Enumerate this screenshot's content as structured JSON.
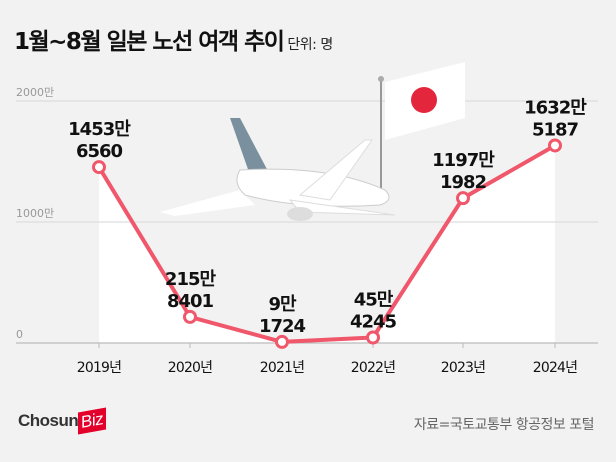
{
  "chart_data": {
    "type": "line",
    "title": "1월~8월 일본 노선 여객 추이",
    "unit_label": "단위: 명",
    "categories": [
      "2019년",
      "2020년",
      "2021년",
      "2022년",
      "2023년",
      "2024년"
    ],
    "values": [
      14536560,
      2158401,
      91724,
      454245,
      11971982,
      16325187
    ],
    "data_labels": [
      [
        "1453만",
        "6560"
      ],
      [
        "215만",
        "8401"
      ],
      [
        "9만",
        "1724"
      ],
      [
        "45만",
        "4245"
      ],
      [
        "1197만",
        "1982"
      ],
      [
        "1632만",
        "5187"
      ]
    ],
    "y_ticks": [
      {
        "value": 0,
        "label": "0"
      },
      {
        "value": 10000000,
        "label": "1000만"
      },
      {
        "value": 20000000,
        "label": "2000만"
      }
    ],
    "ylim": [
      0,
      20000000
    ],
    "color": "#f0576b",
    "grid": true
  },
  "footer": {
    "logo_text": "Chosun",
    "logo_badge": "Biz",
    "source": "자료=국토교통부 항공정보 포털"
  }
}
